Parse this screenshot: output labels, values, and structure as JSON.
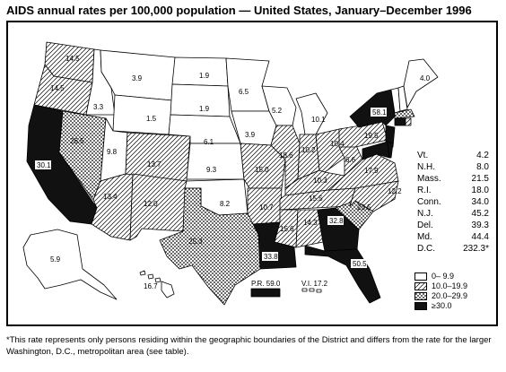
{
  "title": "AIDS annual rates per 100,000 population — United States, January–December 1996",
  "colors": {
    "outline": "#000000",
    "background": "#ffffff",
    "dark_fill": "#111111"
  },
  "legend": {
    "items": [
      {
        "label": "0–  9.9",
        "pattern": "white"
      },
      {
        "label": "10.0–19.9",
        "pattern": "diagonal"
      },
      {
        "label": "20.0–29.9",
        "pattern": "dotted"
      },
      {
        "label": "≥30.0",
        "pattern": "dark"
      }
    ]
  },
  "northeast_rates": [
    {
      "state": "Vt.",
      "rate": "4.2"
    },
    {
      "state": "N.H.",
      "rate": "8.0"
    },
    {
      "state": "Mass.",
      "rate": "21.5"
    },
    {
      "state": "R.I.",
      "rate": "18.0"
    },
    {
      "state": "Conn.",
      "rate": "34.0"
    },
    {
      "state": "N.J.",
      "rate": "45.2"
    },
    {
      "state": "Del.",
      "rate": "39.3"
    },
    {
      "state": "Md.",
      "rate": "44.4"
    },
    {
      "state": "D.C.",
      "rate": "232.3*"
    }
  ],
  "map_labels": {
    "wa": "14.5",
    "or": "14.5",
    "ca": "30.1",
    "nv": "26.5",
    "id": "3.3",
    "mt": "3.9",
    "wy": "1.5",
    "ut": "9.8",
    "az": "13.4",
    "co": "13.7",
    "nm": "12.0",
    "nd": "1.9",
    "sd": "1.9",
    "ne": "6.1",
    "ks": "9.3",
    "ok": "8.2",
    "tx": "25.3",
    "mn": "6.5",
    "ia": "3.9",
    "mo": "15.0",
    "ar": "10.7",
    "la": "33.8",
    "wi": "5.2",
    "il": "18.6",
    "mi": "10.1",
    "in": "10.2",
    "oh": "10.4",
    "ky": "10.3",
    "tn": "15.5",
    "ms": "15.6",
    "al": "14.3",
    "ga": "32.8",
    "fl": "50.5",
    "sc": "23.5",
    "nc": "12.2",
    "va": "17.9",
    "wv": "6.6",
    "pa": "19.5",
    "ny": "58.1",
    "me": "4.0",
    "ak": "5.9",
    "hi": "16.7",
    "pr": "P.R. 59.0",
    "vi": "V.I. 17.2"
  },
  "footnote": "*This rate represents only persons residing within the geographic boundaries of the District and differs from the rate for the larger Washington, D.C., metropolitan area (see table)."
}
